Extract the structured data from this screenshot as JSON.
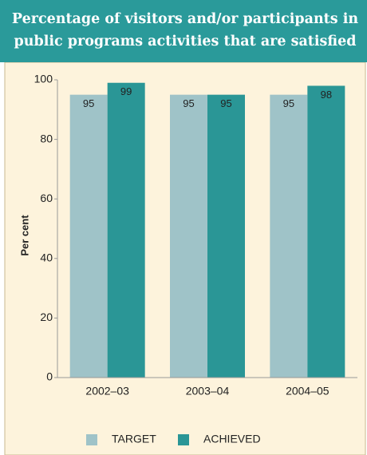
{
  "chart_data": {
    "type": "bar",
    "title": "Percentage of visitors and/or participants in public programs activities that are satisfied",
    "ylabel": "Per cent",
    "categories": [
      "2002–03",
      "2003–04",
      "2004–05"
    ],
    "series": [
      {
        "name": "TARGET",
        "color": "#9fc3c8",
        "values": [
          95,
          95,
          95
        ]
      },
      {
        "name": "ACHIEVED",
        "color": "#2a9696",
        "values": [
          99,
          95,
          98
        ]
      }
    ],
    "ylim": [
      0,
      100
    ],
    "yticks": [
      0,
      20,
      40,
      60,
      80,
      100
    ],
    "grid": false,
    "legend": "bottom"
  }
}
